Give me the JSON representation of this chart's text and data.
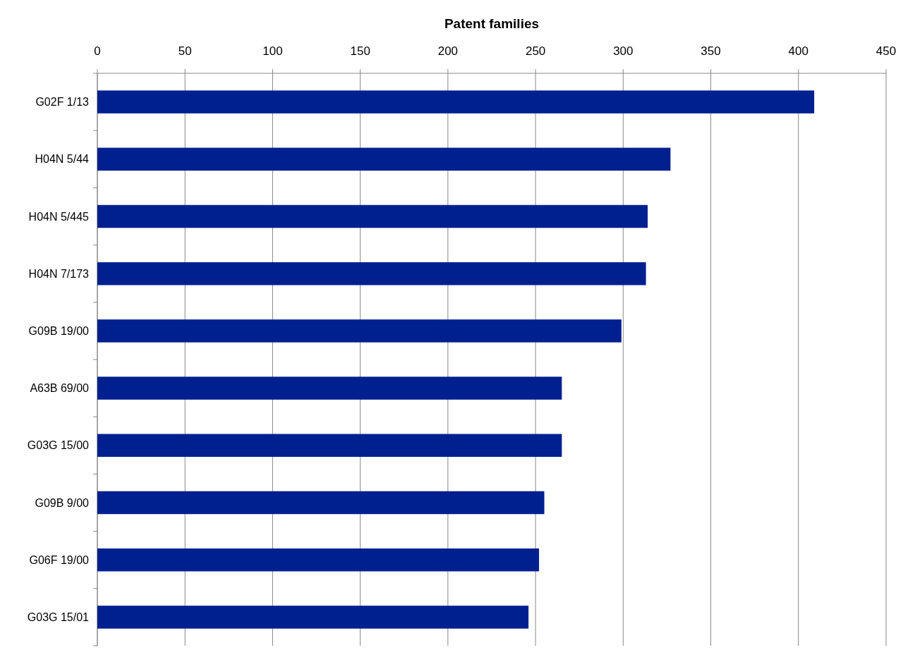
{
  "chart_data": {
    "type": "bar",
    "orientation": "horizontal",
    "xlabel": "Patent families",
    "categories": [
      "G02F 1/13",
      "H04N 5/44",
      "H04N 5/445",
      "H04N 7/173",
      "G09B 19/00",
      "A63B 69/00",
      "G03G 15/00",
      "G09B 9/00",
      "G06F 19/00",
      "G03G 15/01"
    ],
    "values": [
      409,
      327,
      314,
      313,
      299,
      265,
      265,
      255,
      252,
      246
    ],
    "color": "#00208f",
    "xlim": [
      0,
      450
    ],
    "xticks": [
      0,
      50,
      100,
      150,
      200,
      250,
      300,
      350,
      400,
      450
    ],
    "grid": "x"
  }
}
